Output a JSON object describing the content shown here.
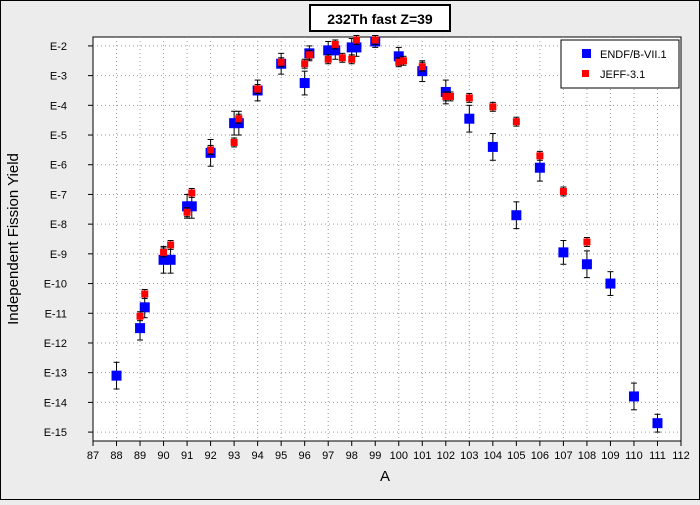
{
  "chart_data": {
    "type": "scatter",
    "title": "232Th fast Z=39",
    "xlabel": "A",
    "ylabel": "Independent Fission Yield",
    "xlim": [
      87,
      112
    ],
    "x_ticks": [
      "87",
      "88",
      "89",
      "90",
      "91",
      "92",
      "93",
      "94",
      "95",
      "96",
      "97",
      "98",
      "99",
      "100",
      "101",
      "102",
      "103",
      "104",
      "105",
      "106",
      "107",
      "108",
      "109",
      "110",
      "111",
      "112"
    ],
    "ylim_log10": [
      -15.3,
      -1.7
    ],
    "y_ticks": [
      {
        "label": "E-2",
        "exp": -2
      },
      {
        "label": "E-3",
        "exp": -3
      },
      {
        "label": "E-4",
        "exp": -4
      },
      {
        "label": "E-5",
        "exp": -5
      },
      {
        "label": "E-6",
        "exp": -6
      },
      {
        "label": "E-7",
        "exp": -7
      },
      {
        "label": "E-8",
        "exp": -8
      },
      {
        "label": "E-9",
        "exp": -9
      },
      {
        "label": "E-10",
        "exp": -10
      },
      {
        "label": "E-11",
        "exp": -11
      },
      {
        "label": "E-12",
        "exp": -12
      },
      {
        "label": "E-13",
        "exp": -13
      },
      {
        "label": "E-14",
        "exp": -14
      },
      {
        "label": "E-15",
        "exp": -15
      }
    ],
    "grid": true,
    "legend_position": "top-right",
    "series": [
      {
        "name": "ENDF/B-VII.1",
        "color": "#0000ff",
        "marker": "square",
        "points": [
          {
            "x": 88.0,
            "y_exp": -13.1,
            "err": 0.45
          },
          {
            "x": 89.0,
            "y_exp": -11.5,
            "err": 0.4
          },
          {
            "x": 89.2,
            "y_exp": -10.8,
            "err": 0.35
          },
          {
            "x": 90.0,
            "y_exp": -9.2,
            "err": 0.45
          },
          {
            "x": 90.3,
            "y_exp": -9.2,
            "err": 0.45
          },
          {
            "x": 91.0,
            "y_exp": -7.4,
            "err": 0.4
          },
          {
            "x": 91.2,
            "y_exp": -7.4,
            "err": 0.4
          },
          {
            "x": 92.0,
            "y_exp": -5.6,
            "err": 0.45
          },
          {
            "x": 93.0,
            "y_exp": -4.6,
            "err": 0.4
          },
          {
            "x": 93.2,
            "y_exp": -4.6,
            "err": 0.4
          },
          {
            "x": 94.0,
            "y_exp": -3.5,
            "err": 0.35
          },
          {
            "x": 95.0,
            "y_exp": -2.6,
            "err": 0.35
          },
          {
            "x": 96.0,
            "y_exp": -3.25,
            "err": 0.4
          },
          {
            "x": 96.2,
            "y_exp": -2.25,
            "err": 0.25
          },
          {
            "x": 97.0,
            "y_exp": -2.15,
            "err": 0.3
          },
          {
            "x": 97.3,
            "y_exp": -2.15,
            "err": 0.3
          },
          {
            "x": 98.0,
            "y_exp": -2.05,
            "err": 0.3
          },
          {
            "x": 98.2,
            "y_exp": -2.05,
            "err": 0.3
          },
          {
            "x": 99.0,
            "y_exp": -1.85,
            "err": 0.2
          },
          {
            "x": 100.0,
            "y_exp": -2.35,
            "err": 0.3
          },
          {
            "x": 101.0,
            "y_exp": -2.85,
            "err": 0.35
          },
          {
            "x": 102.0,
            "y_exp": -3.55,
            "err": 0.4
          },
          {
            "x": 103.0,
            "y_exp": -4.45,
            "err": 0.45
          },
          {
            "x": 104.0,
            "y_exp": -5.4,
            "err": 0.45
          },
          {
            "x": 105.0,
            "y_exp": -7.7,
            "err": 0.45
          },
          {
            "x": 106.0,
            "y_exp": -6.1,
            "err": 0.45
          },
          {
            "x": 107.0,
            "y_exp": -8.95,
            "err": 0.4
          },
          {
            "x": 108.0,
            "y_exp": -9.35,
            "err": 0.45
          },
          {
            "x": 109.0,
            "y_exp": -10.0,
            "err": 0.4
          },
          {
            "x": 110.0,
            "y_exp": -13.8,
            "err": 0.45
          },
          {
            "x": 111.0,
            "y_exp": -14.7,
            "err": 0.3
          }
        ]
      },
      {
        "name": "JEFF-3.1",
        "color": "#ff0000",
        "marker": "square",
        "points": [
          {
            "x": 89.0,
            "y_exp": -11.1,
            "err": 0.15
          },
          {
            "x": 89.2,
            "y_exp": -10.35,
            "err": 0.15
          },
          {
            "x": 90.0,
            "y_exp": -8.95,
            "err": 0.15
          },
          {
            "x": 90.3,
            "y_exp": -8.7,
            "err": 0.15
          },
          {
            "x": 91.0,
            "y_exp": -7.6,
            "err": 0.15
          },
          {
            "x": 91.2,
            "y_exp": -6.95,
            "err": 0.15
          },
          {
            "x": 92.0,
            "y_exp": -5.5,
            "err": 0.15
          },
          {
            "x": 93.0,
            "y_exp": -5.25,
            "err": 0.15
          },
          {
            "x": 93.2,
            "y_exp": -4.45,
            "err": 0.15
          },
          {
            "x": 94.0,
            "y_exp": -3.45,
            "err": 0.15
          },
          {
            "x": 95.0,
            "y_exp": -2.55,
            "err": 0.15
          },
          {
            "x": 96.0,
            "y_exp": -2.6,
            "err": 0.15
          },
          {
            "x": 96.2,
            "y_exp": -2.3,
            "err": 0.15
          },
          {
            "x": 97.0,
            "y_exp": -2.45,
            "err": 0.15
          },
          {
            "x": 97.3,
            "y_exp": -1.95,
            "err": 0.15
          },
          {
            "x": 97.6,
            "y_exp": -2.4,
            "err": 0.15
          },
          {
            "x": 98.0,
            "y_exp": -2.45,
            "err": 0.15
          },
          {
            "x": 98.2,
            "y_exp": -1.8,
            "err": 0.15
          },
          {
            "x": 99.0,
            "y_exp": -1.8,
            "err": 0.15
          },
          {
            "x": 100.0,
            "y_exp": -2.55,
            "err": 0.15
          },
          {
            "x": 100.2,
            "y_exp": -2.5,
            "err": 0.15
          },
          {
            "x": 101.0,
            "y_exp": -2.7,
            "err": 0.15
          },
          {
            "x": 102.0,
            "y_exp": -3.7,
            "err": 0.15
          },
          {
            "x": 102.2,
            "y_exp": -3.7,
            "err": 0.15
          },
          {
            "x": 103.0,
            "y_exp": -3.75,
            "err": 0.15
          },
          {
            "x": 104.0,
            "y_exp": -4.05,
            "err": 0.15
          },
          {
            "x": 105.0,
            "y_exp": -4.55,
            "err": 0.15
          },
          {
            "x": 106.0,
            "y_exp": -5.7,
            "err": 0.15
          },
          {
            "x": 107.0,
            "y_exp": -6.9,
            "err": 0.15
          },
          {
            "x": 108.0,
            "y_exp": -8.6,
            "err": 0.15
          }
        ]
      }
    ]
  }
}
